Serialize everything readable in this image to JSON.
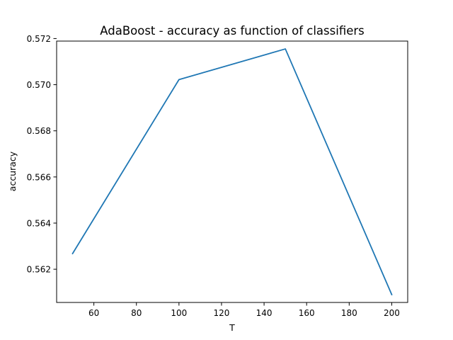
{
  "chart_data": {
    "type": "line",
    "title": "AdaBoost - accuracy as function of classifiers",
    "xlabel": "T",
    "ylabel": "accuracy",
    "xlim": [
      42.5,
      207.5
    ],
    "ylim": [
      0.56056,
      0.57189
    ],
    "xticks": [
      60,
      80,
      100,
      120,
      140,
      160,
      180,
      200
    ],
    "yticks": [
      0.562,
      0.564,
      0.566,
      0.568,
      0.57,
      0.572
    ],
    "xtick_labels": [
      "60",
      "80",
      "100",
      "120",
      "140",
      "160",
      "180",
      "200"
    ],
    "ytick_labels": [
      "0.562",
      "0.564",
      "0.566",
      "0.568",
      "0.570",
      "0.572"
    ],
    "grid": false,
    "legend": "none",
    "series": [
      {
        "color": "#1f77b4",
        "x": [
          50,
          100,
          150,
          200
        ],
        "y": [
          0.56268,
          0.57022,
          0.57155,
          0.5609
        ]
      }
    ]
  }
}
